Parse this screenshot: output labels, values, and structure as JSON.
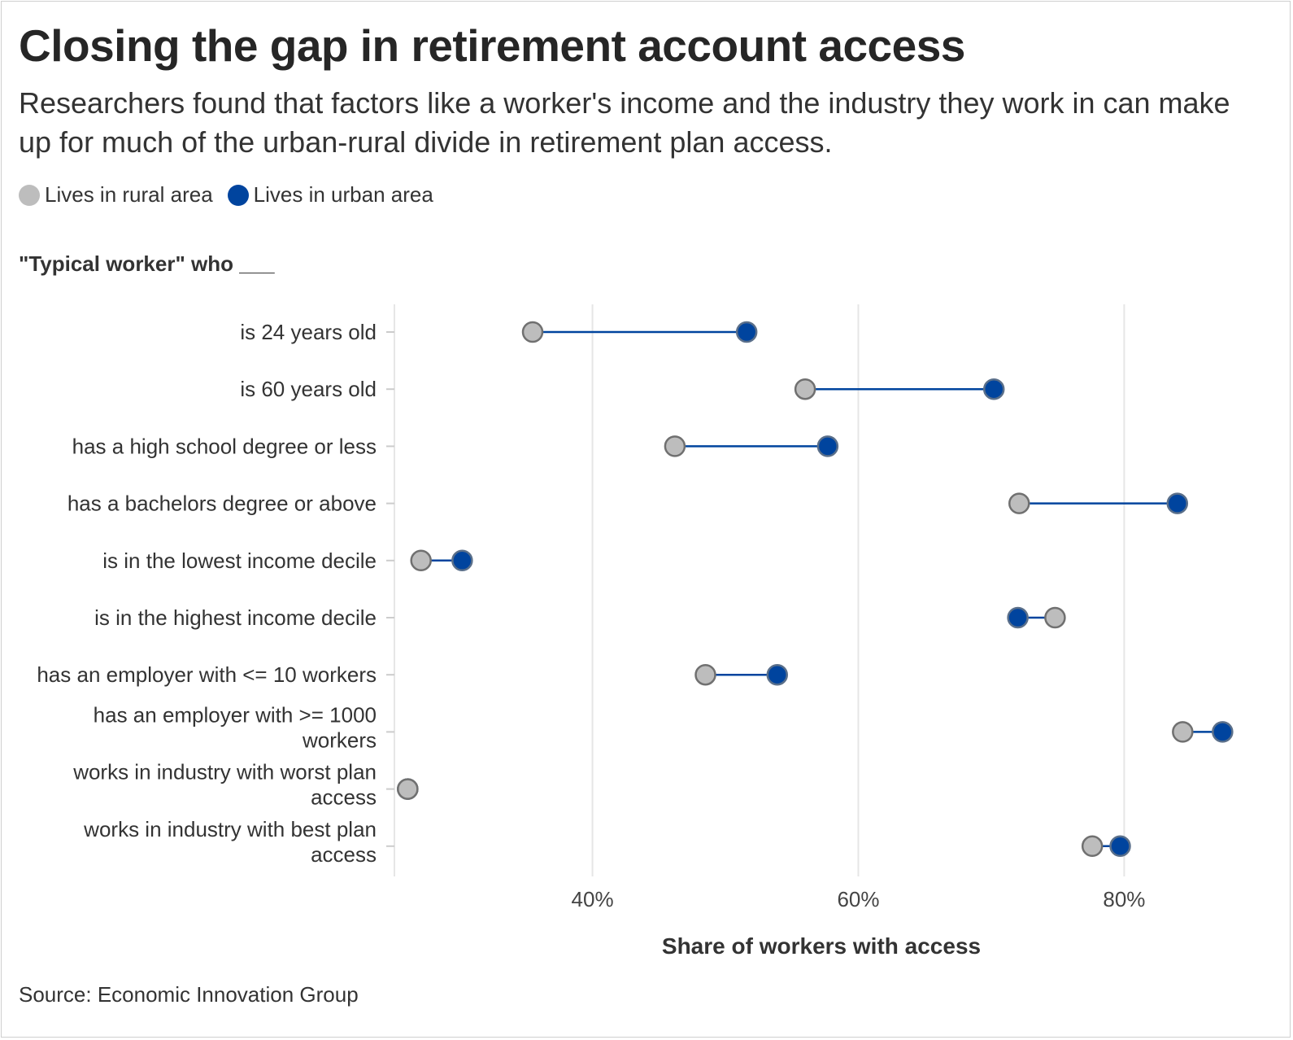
{
  "title": "Closing the gap in retirement account access",
  "subtitle": "Researchers found that factors like a worker's income and the industry they work in can make up for much of the urban-rural divide in retirement plan access.",
  "legend": [
    {
      "label": "Lives in rural area",
      "color": "#bdbdbd"
    },
    {
      "label": "Lives in urban area",
      "color": "#00449e"
    }
  ],
  "y_axis_title": "\"Typical worker\" who ___",
  "source": "Source: Economic Innovation Group",
  "chart_data": {
    "type": "dumbbell",
    "xlabel": "Share of workers with access",
    "xlim": [
      25.1,
      87.5
    ],
    "xticks": [
      40,
      60,
      80
    ],
    "xtick_labels": [
      "40%",
      "60%",
      "80%"
    ],
    "grid": true,
    "legend_position": "top-left",
    "categories": [
      [
        "is 24 years old"
      ],
      [
        "is 60 years old"
      ],
      [
        "has a high school degree or less"
      ],
      [
        "has a bachelors degree or above"
      ],
      [
        "is in the lowest income decile"
      ],
      [
        "is in the highest income decile"
      ],
      [
        "has an employer with <= 10 workers"
      ],
      [
        "has an employer with >= 1000",
        "workers"
      ],
      [
        "works in industry with worst plan",
        "access"
      ],
      [
        "works in industry with best plan",
        "access"
      ]
    ],
    "series": [
      {
        "name": "Lives in rural area",
        "color": "#bdbdbd",
        "values": [
          35.5,
          56.0,
          46.2,
          72.1,
          27.1,
          74.8,
          48.5,
          84.4,
          26.1,
          77.6
        ]
      },
      {
        "name": "Lives in urban area",
        "color": "#00449e",
        "values": [
          51.6,
          70.2,
          57.7,
          84.0,
          30.2,
          72.0,
          53.9,
          87.4,
          26.1,
          79.7
        ]
      }
    ],
    "connector_color": "#00449e"
  }
}
